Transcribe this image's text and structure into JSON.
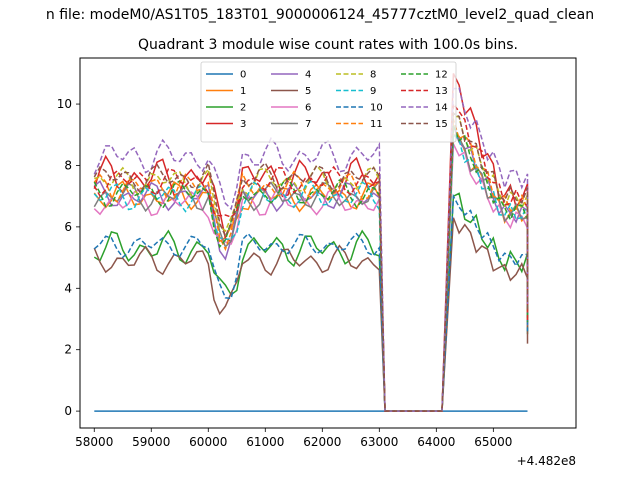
{
  "chart_data": {
    "type": "line",
    "suptitle": "n file: modeM0/AS1T05_183T01_9000006124_45777cztM0_level2_quad_clean",
    "title": "Quadrant 3 module wise count rates with 100.0s bins.",
    "xlabel": "",
    "ylabel": "",
    "x_offset_label": "+4.482e8",
    "xlim": [
      57750,
      66450
    ],
    "ylim": [
      -0.55,
      11.5
    ],
    "x_ticks": [
      58000,
      59000,
      60000,
      61000,
      62000,
      63000,
      64000,
      65000
    ],
    "x_tick_labels": [
      "58000",
      "59000",
      "60000",
      "61000",
      "62000",
      "63000",
      "64000",
      "65000"
    ],
    "y_ticks": [
      0,
      2,
      4,
      6,
      8,
      10
    ],
    "y_tick_labels": [
      "0",
      "2",
      "4",
      "6",
      "8",
      "10"
    ],
    "grid": false,
    "legend_position": "upper-center",
    "legend_columns": 4,
    "gap": {
      "start": 63100,
      "end": 64100
    },
    "segments": [
      {
        "start": 58000,
        "end": 63000
      },
      {
        "start": 64100,
        "end": 65600
      }
    ],
    "series": [
      {
        "name": "0",
        "color": "#1f77b4",
        "dashed": false,
        "level": 0,
        "amplitude": 0,
        "phase": 0,
        "peak": 0,
        "final": 0
      },
      {
        "name": "1",
        "color": "#ff7f0e",
        "dashed": false,
        "level": 7.0,
        "amplitude": 0.5,
        "phase": 1,
        "peak": 9.0,
        "final": 3.2
      },
      {
        "name": "2",
        "color": "#2ca02c",
        "dashed": false,
        "level": 5.3,
        "amplitude": 0.6,
        "phase": 2,
        "peak": 7.0,
        "final": 2.5
      },
      {
        "name": "3",
        "color": "#d62728",
        "dashed": false,
        "level": 7.6,
        "amplitude": 0.7,
        "phase": 3,
        "peak": 11.0,
        "final": 3.3
      },
      {
        "name": "4",
        "color": "#9467bd",
        "dashed": false,
        "level": 7.0,
        "amplitude": 0.5,
        "phase": 4,
        "peak": 9.3,
        "final": 2.9
      },
      {
        "name": "5",
        "color": "#8c564b",
        "dashed": false,
        "level": 4.9,
        "amplitude": 0.5,
        "phase": 5,
        "peak": 6.3,
        "final": 2.2
      },
      {
        "name": "6",
        "color": "#e377c2",
        "dashed": false,
        "level": 6.8,
        "amplitude": 0.5,
        "phase": 6,
        "peak": 8.7,
        "final": 2.8
      },
      {
        "name": "7",
        "color": "#7f7f7f",
        "dashed": false,
        "level": 7.0,
        "amplitude": 0.5,
        "phase": 7,
        "peak": 9.0,
        "final": 2.9
      },
      {
        "name": "8",
        "color": "#bcbd22",
        "dashed": true,
        "level": 7.5,
        "amplitude": 0.5,
        "phase": 8,
        "peak": 9.6,
        "final": 3.0
      },
      {
        "name": "9",
        "color": "#17becf",
        "dashed": true,
        "level": 7.0,
        "amplitude": 0.5,
        "phase": 9,
        "peak": 9.0,
        "final": 2.9
      },
      {
        "name": "10",
        "color": "#1f77b4",
        "dashed": true,
        "level": 5.4,
        "amplitude": 0.4,
        "phase": 10,
        "peak": 7.0,
        "final": 2.6
      },
      {
        "name": "11",
        "color": "#ff7f0e",
        "dashed": true,
        "level": 7.3,
        "amplitude": 0.5,
        "phase": 11,
        "peak": 9.5,
        "final": 2.9
      },
      {
        "name": "12",
        "color": "#2ca02c",
        "dashed": true,
        "level": 7.1,
        "amplitude": 0.5,
        "phase": 12,
        "peak": 9.3,
        "final": 2.9
      },
      {
        "name": "13",
        "color": "#d62728",
        "dashed": true,
        "level": 7.5,
        "amplitude": 0.5,
        "phase": 13,
        "peak": 10.0,
        "final": 2.9
      },
      {
        "name": "14",
        "color": "#9467bd",
        "dashed": true,
        "level": 8.3,
        "amplitude": 0.6,
        "phase": 14,
        "peak": 10.5,
        "final": 3.4
      },
      {
        "name": "15",
        "color": "#8c564b",
        "dashed": true,
        "level": 7.6,
        "amplitude": 0.5,
        "phase": 15,
        "peak": 9.7,
        "final": 3.2
      }
    ]
  }
}
